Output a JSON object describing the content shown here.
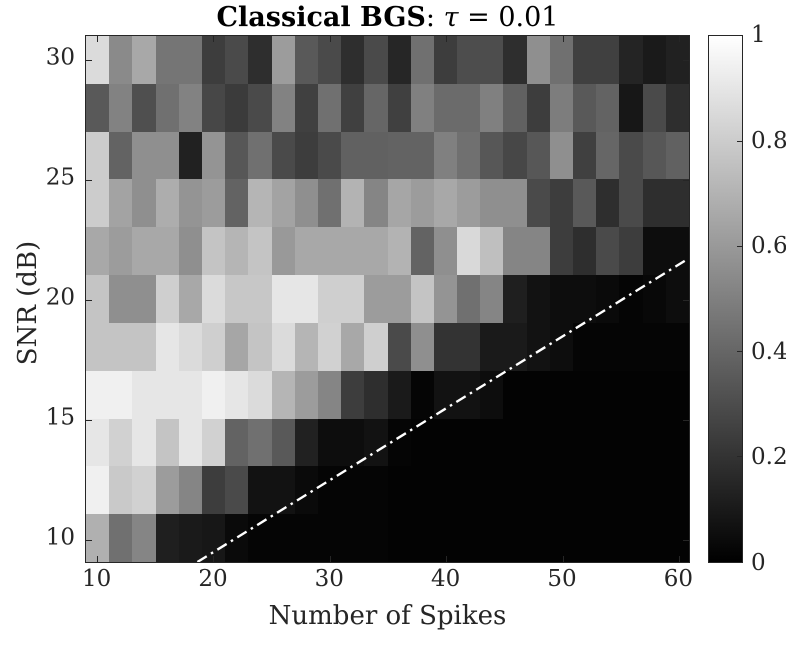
{
  "figure": {
    "title": {
      "bold": "Classical BGS",
      "sep": ": ",
      "tau": "τ",
      "eq": " = 0.01"
    },
    "xlabel": "Number of Spikes",
    "ylabel": "SNR (dB)"
  },
  "colors": {
    "axis": "#262626",
    "background": "#ffffff",
    "overlay_line": "#ffffff"
  },
  "chart_data": {
    "type": "heatmap",
    "title": "Classical BGS: τ = 0.01",
    "xlabel": "Number of Spikes",
    "ylabel": "SNR (dB)",
    "colormap": "gray",
    "grid": false,
    "x_values": [
      10,
      12,
      14,
      16,
      18,
      20,
      22,
      24,
      26,
      28,
      30,
      32,
      34,
      36,
      38,
      40,
      42,
      44,
      46,
      48,
      50,
      52,
      54,
      56,
      58,
      60
    ],
    "y_values": [
      30,
      28,
      26,
      24,
      22,
      20,
      18,
      16,
      14,
      12,
      10
    ],
    "x_range": [
      9,
      61
    ],
    "y_range": [
      9,
      31
    ],
    "x_ticks": [
      10,
      20,
      30,
      40,
      50,
      60
    ],
    "y_ticks": [
      30,
      25,
      20,
      15,
      10
    ],
    "clim": [
      0,
      1
    ],
    "colorbar_ticks": [
      0,
      0.2,
      0.4,
      0.6,
      0.8,
      1
    ],
    "colorbar_labels": [
      "0",
      "0.2",
      "0.4",
      "0.6",
      "0.8",
      "1"
    ],
    "matrix": [
      [
        0.86,
        0.54,
        0.66,
        0.46,
        0.46,
        0.24,
        0.29,
        0.18,
        0.61,
        0.35,
        0.29,
        0.18,
        0.29,
        0.15,
        0.44,
        0.24,
        0.3,
        0.3,
        0.18,
        0.56,
        0.44,
        0.25,
        0.25,
        0.14,
        0.1,
        0.13
      ],
      [
        0.35,
        0.51,
        0.31,
        0.44,
        0.51,
        0.28,
        0.23,
        0.29,
        0.51,
        0.25,
        0.44,
        0.25,
        0.4,
        0.25,
        0.5,
        0.42,
        0.42,
        0.5,
        0.38,
        0.24,
        0.49,
        0.35,
        0.39,
        0.09,
        0.29,
        0.18
      ],
      [
        0.8,
        0.39,
        0.56,
        0.56,
        0.13,
        0.58,
        0.34,
        0.44,
        0.29,
        0.24,
        0.29,
        0.38,
        0.38,
        0.39,
        0.39,
        0.5,
        0.44,
        0.34,
        0.28,
        0.34,
        0.56,
        0.25,
        0.4,
        0.29,
        0.34,
        0.38
      ],
      [
        0.8,
        0.64,
        0.56,
        0.68,
        0.58,
        0.61,
        0.39,
        0.71,
        0.64,
        0.56,
        0.44,
        0.7,
        0.52,
        0.65,
        0.61,
        0.66,
        0.61,
        0.56,
        0.56,
        0.29,
        0.24,
        0.35,
        0.18,
        0.29,
        0.18,
        0.18
      ],
      [
        0.66,
        0.61,
        0.66,
        0.66,
        0.56,
        0.77,
        0.71,
        0.77,
        0.6,
        0.66,
        0.66,
        0.66,
        0.66,
        0.7,
        0.39,
        0.56,
        0.85,
        0.75,
        0.52,
        0.52,
        0.24,
        0.18,
        0.29,
        0.24,
        0.05,
        0.05
      ],
      [
        0.77,
        0.56,
        0.56,
        0.81,
        0.66,
        0.86,
        0.78,
        0.78,
        0.9,
        0.9,
        0.81,
        0.81,
        0.61,
        0.61,
        0.77,
        0.58,
        0.44,
        0.52,
        0.12,
        0.07,
        0.05,
        0.05,
        0.04,
        0.02,
        0.03,
        0.05
      ],
      [
        0.77,
        0.77,
        0.77,
        0.9,
        0.86,
        0.81,
        0.65,
        0.77,
        0.86,
        0.71,
        0.82,
        0.66,
        0.81,
        0.29,
        0.56,
        0.2,
        0.2,
        0.1,
        0.1,
        0.07,
        0.05,
        0.02,
        0.02,
        0.02,
        0.02,
        0.02
      ],
      [
        0.94,
        0.94,
        0.9,
        0.9,
        0.9,
        0.94,
        0.9,
        0.86,
        0.71,
        0.61,
        0.52,
        0.24,
        0.18,
        0.1,
        0.02,
        0.07,
        0.07,
        0.05,
        0.01,
        0.01,
        0.01,
        0.01,
        0.01,
        0.01,
        0.01,
        0.01
      ],
      [
        0.9,
        0.82,
        0.9,
        0.77,
        0.9,
        0.82,
        0.39,
        0.44,
        0.35,
        0.13,
        0.05,
        0.05,
        0.07,
        0.02,
        0.01,
        0.01,
        0.01,
        0.01,
        0.01,
        0.01,
        0.01,
        0.01,
        0.01,
        0.01,
        0.01,
        0.01
      ],
      [
        0.94,
        0.79,
        0.82,
        0.61,
        0.52,
        0.24,
        0.29,
        0.07,
        0.07,
        0.04,
        0.02,
        0.02,
        0.02,
        0.01,
        0.01,
        0.01,
        0.01,
        0.01,
        0.01,
        0.01,
        0.01,
        0.01,
        0.01,
        0.01,
        0.01,
        0.01
      ],
      [
        0.69,
        0.44,
        0.52,
        0.12,
        0.1,
        0.09,
        0.04,
        0.02,
        0.02,
        0.02,
        0.02,
        0.02,
        0.02,
        0.01,
        0.01,
        0.01,
        0.01,
        0.01,
        0.01,
        0.01,
        0.01,
        0.01,
        0.01,
        0.01,
        0.01,
        0.01
      ]
    ],
    "overlay_line": {
      "style": "dash-dot",
      "color": "#ffffff",
      "points_data": [
        [
          18.6,
          9.0
        ],
        [
          61.0,
          21.7
        ]
      ]
    },
    "legend": null
  }
}
